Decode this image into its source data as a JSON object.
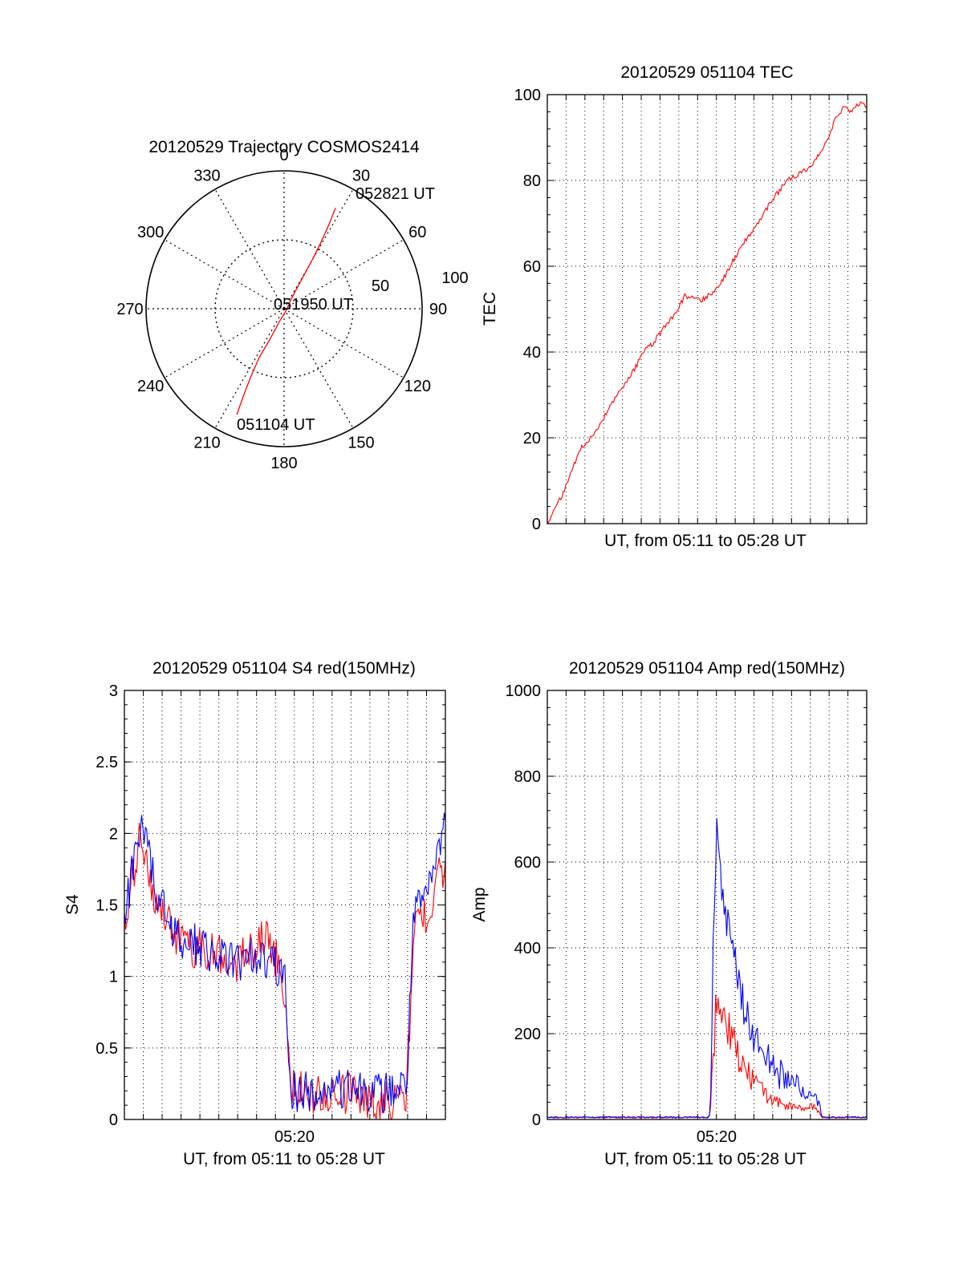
{
  "colors": {
    "red": "#ff0000",
    "blue": "#0000ff",
    "grid": "#000000",
    "background": "#ffffff"
  },
  "chart_data": [
    {
      "type": "polar",
      "title": "20120529 Trajectory COSMOS2414",
      "grid": true,
      "angle_ticks": [
        "0",
        "30",
        "60",
        "90",
        "120",
        "150",
        "180",
        "210",
        "240",
        "270",
        "300",
        "330"
      ],
      "radial_ticks": [
        "50",
        "100"
      ],
      "series": [
        {
          "color": "#ff0000",
          "points": [
            {
              "az": 204,
              "r": 84
            },
            {
              "az": 205,
              "r": 70
            },
            {
              "az": 206,
              "r": 55
            },
            {
              "az": 207,
              "r": 40
            },
            {
              "az": 205,
              "r": 25
            },
            {
              "az": 200,
              "r": 10
            },
            {
              "az": 135,
              "r": 2
            },
            {
              "az": 35,
              "r": 10
            },
            {
              "az": 31,
              "r": 25
            },
            {
              "az": 30,
              "r": 40
            },
            {
              "az": 29,
              "r": 55
            },
            {
              "az": 28,
              "r": 70
            },
            {
              "az": 27,
              "r": 82
            }
          ]
        }
      ],
      "annotations": [
        "052821 UT",
        "051950 UT",
        "051104 UT"
      ]
    },
    {
      "type": "line",
      "title": "20120529 051104 TEC",
      "xlabel": "UT, from 05:11 to 05:28 UT",
      "ylabel": "TEC",
      "ylim": [
        0,
        100
      ],
      "yticks": [
        "0",
        "20",
        "40",
        "60",
        "80",
        "100"
      ],
      "grid": true,
      "series": [
        {
          "color": "#ff0000",
          "x": [
            0,
            0.02,
            0.05,
            0.08,
            0.1,
            0.12,
            0.15,
            0.18,
            0.22,
            0.25,
            0.28,
            0.3,
            0.33,
            0.36,
            0.4,
            0.43,
            0.46,
            0.48,
            0.5,
            0.52,
            0.55,
            0.58,
            0.62,
            0.65,
            0.7,
            0.75,
            0.78,
            0.82,
            0.85,
            0.88,
            0.9,
            0.92,
            0.93,
            0.95,
            0.98,
            1.0
          ],
          "y": [
            0,
            3,
            7,
            13,
            17,
            19,
            21,
            25,
            30,
            33,
            37,
            40,
            42,
            45,
            49,
            53,
            53,
            52,
            53,
            54,
            57,
            61,
            66,
            69,
            75,
            80,
            81,
            83,
            86,
            90,
            94,
            96,
            97,
            96,
            98,
            97
          ]
        }
      ]
    },
    {
      "type": "line",
      "title": "20120529 051104 S4 red(150MHz)",
      "xlabel": "UT, from 05:11 to 05:28 UT",
      "ylabel": "S4",
      "xticks": [
        "05:20"
      ],
      "ylim": [
        0,
        3
      ],
      "yticks": [
        "0",
        "0.5",
        "1",
        "1.5",
        "2",
        "2.5",
        "3"
      ],
      "grid": true,
      "series": [
        {
          "color": "#ff0000",
          "x": [
            0,
            0.05,
            0.1,
            0.15,
            0.2,
            0.25,
            0.3,
            0.35,
            0.4,
            0.45,
            0.5,
            0.52,
            0.55,
            0.6,
            0.65,
            0.7,
            0.75,
            0.8,
            0.85,
            0.88,
            0.9,
            0.95,
            1.0
          ],
          "y": [
            1.3,
            2.0,
            1.5,
            1.3,
            1.2,
            1.2,
            1.15,
            1.1,
            1.2,
            1.3,
            0.9,
            0.2,
            0.2,
            0.18,
            0.15,
            0.2,
            0.15,
            0.12,
            0.15,
            0.2,
            1.3,
            1.5,
            1.8
          ]
        },
        {
          "color": "#0000ff",
          "x": [
            0,
            0.05,
            0.1,
            0.15,
            0.2,
            0.25,
            0.3,
            0.35,
            0.4,
            0.45,
            0.5,
            0.52,
            0.55,
            0.6,
            0.65,
            0.7,
            0.75,
            0.8,
            0.85,
            0.88,
            0.9,
            0.95,
            1.0
          ],
          "y": [
            1.4,
            2.1,
            1.6,
            1.3,
            1.25,
            1.2,
            1.15,
            1.1,
            1.15,
            1.1,
            1.0,
            0.18,
            0.2,
            0.18,
            0.2,
            0.2,
            0.22,
            0.18,
            0.22,
            0.25,
            1.4,
            1.6,
            2.1
          ]
        }
      ]
    },
    {
      "type": "line",
      "title": "20120529 051104 Amp red(150MHz)",
      "xlabel": "UT, from 05:11 to 05:28 UT",
      "ylabel": "Amp",
      "xticks": [
        "05:20"
      ],
      "ylim": [
        0,
        1000
      ],
      "yticks": [
        "0",
        "200",
        "400",
        "600",
        "800",
        "1000"
      ],
      "grid": true,
      "series": [
        {
          "color": "#ff0000",
          "x": [
            0,
            0.5,
            0.51,
            0.52,
            0.53,
            0.54,
            0.56,
            0.58,
            0.6,
            0.62,
            0.65,
            0.68,
            0.72,
            0.76,
            0.8,
            0.83,
            0.85,
            0.86,
            1.0
          ],
          "y": [
            5,
            5,
            8,
            150,
            300,
            250,
            220,
            180,
            140,
            110,
            90,
            60,
            40,
            30,
            25,
            30,
            20,
            5,
            5
          ]
        },
        {
          "color": "#0000ff",
          "x": [
            0,
            0.5,
            0.51,
            0.52,
            0.53,
            0.54,
            0.56,
            0.58,
            0.6,
            0.62,
            0.65,
            0.68,
            0.72,
            0.76,
            0.8,
            0.83,
            0.85,
            0.86,
            1.0
          ],
          "y": [
            5,
            5,
            10,
            450,
            690,
            560,
            460,
            390,
            320,
            250,
            190,
            150,
            110,
            90,
            70,
            50,
            40,
            5,
            5
          ]
        }
      ]
    }
  ]
}
